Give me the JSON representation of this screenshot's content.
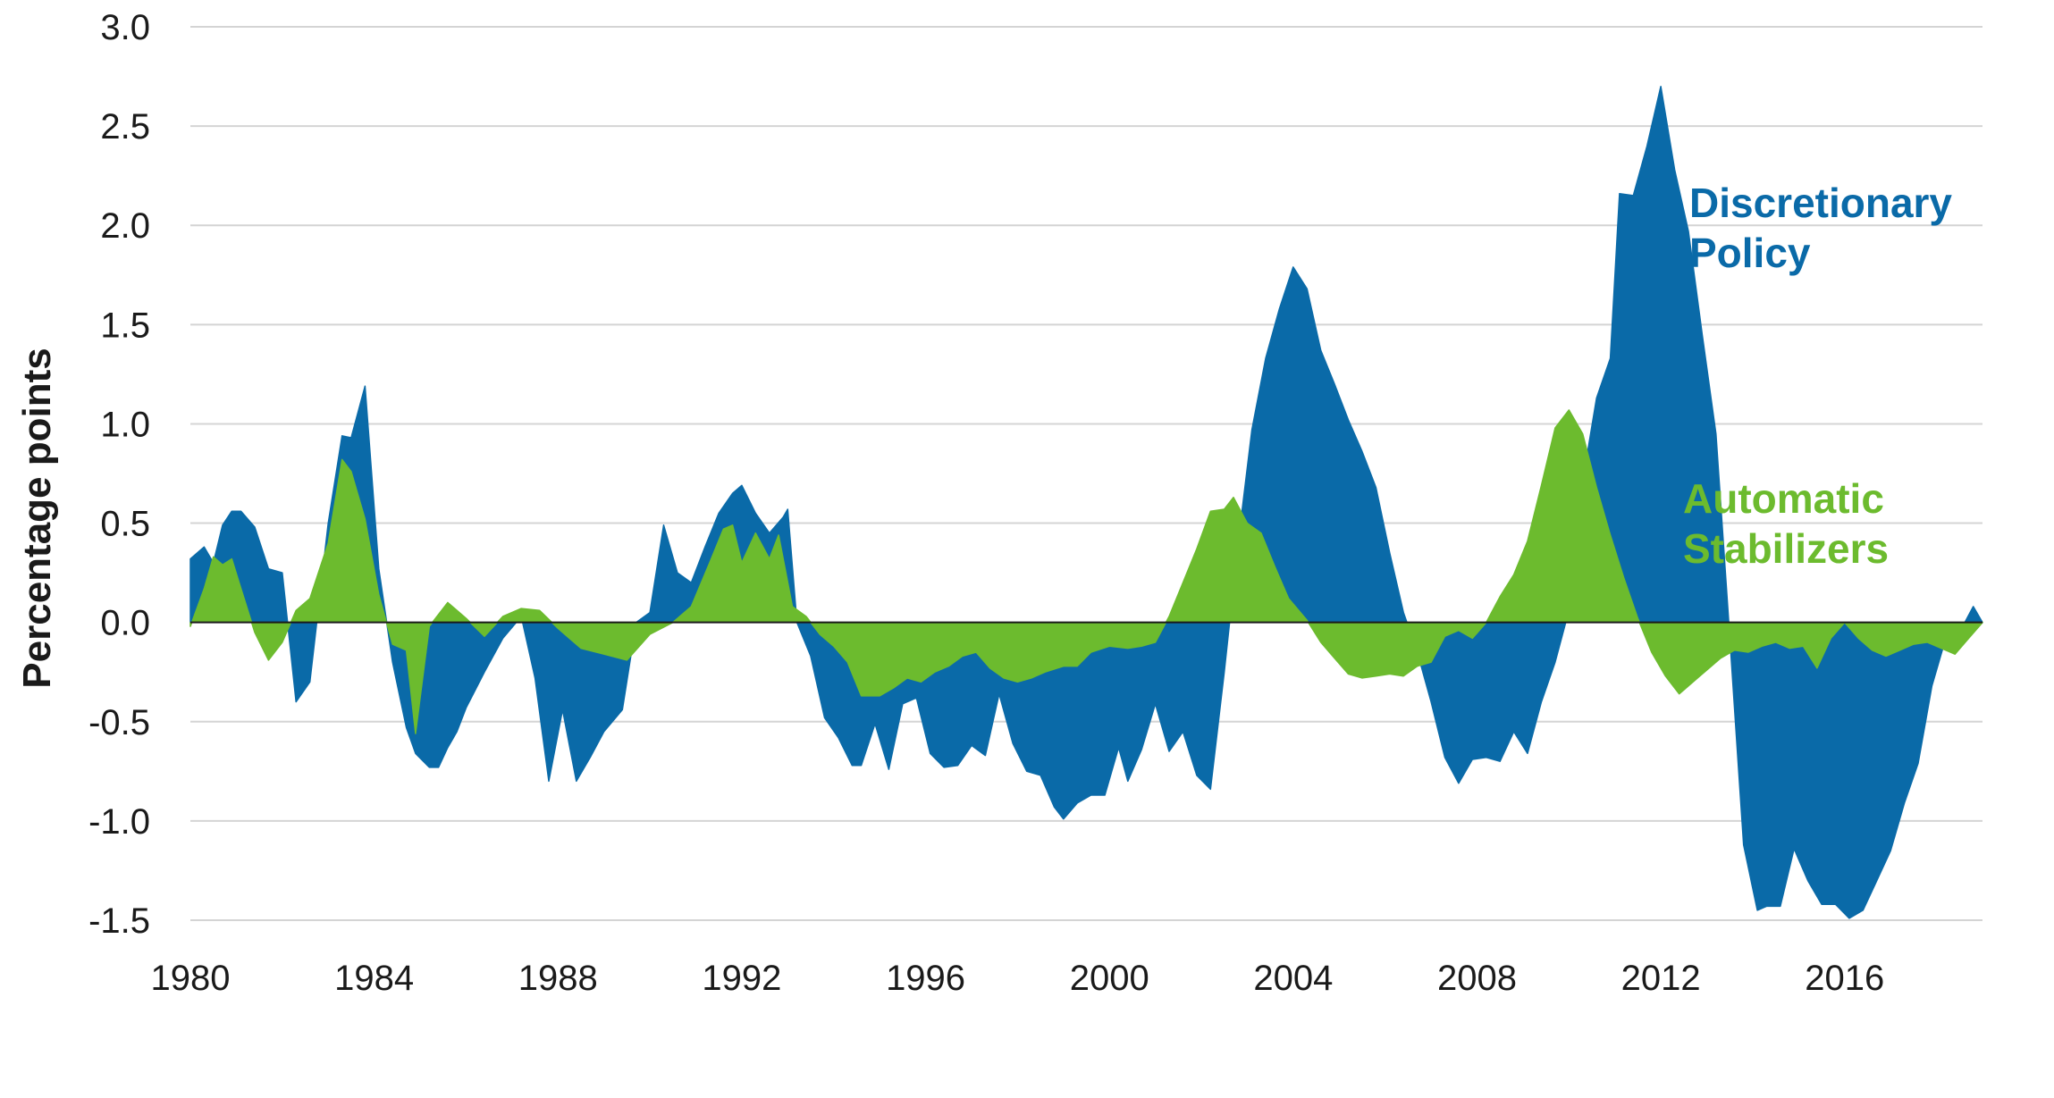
{
  "chart_data": {
    "type": "area",
    "title": "",
    "xlabel": "",
    "ylabel": "Percentage points",
    "xlim": [
      1980.0,
      2019.0
    ],
    "ylim": [
      -1.5,
      3.0
    ],
    "y_ticks": [
      "3.0",
      "2.5",
      "2.0",
      "1.5",
      "1.0",
      "0.5",
      "0.0",
      "-0.5",
      "-1.0",
      "-1.5"
    ],
    "x_ticks": [
      "1980",
      "1984",
      "1988",
      "1992",
      "1996",
      "2000",
      "2004",
      "2008",
      "2012",
      "2016"
    ],
    "grid": "horizontal",
    "colors": {
      "discretionary": "#0a6aa8",
      "automatic": "#6cbb2e",
      "zero_line": "#1a1a1a",
      "grid": "#d4d4d4"
    },
    "annotations": [
      {
        "series": "Discretionary Policy",
        "lines": [
          "Discretionary",
          "Policy"
        ],
        "color": "#0a6aa8"
      },
      {
        "series": "Automatic Stabilizers",
        "lines": [
          "Automatic",
          "Stabilizers"
        ],
        "color": "#6cbb2e"
      }
    ],
    "series": [
      {
        "name": "Automatic Stabilizers",
        "points": [
          [
            1980.0,
            -0.02
          ],
          [
            1980.3,
            0.17
          ],
          [
            1980.5,
            0.33
          ],
          [
            1980.7,
            0.29
          ],
          [
            1980.9,
            0.32
          ],
          [
            1981.1,
            0.17
          ],
          [
            1981.4,
            -0.05
          ],
          [
            1981.7,
            -0.19
          ],
          [
            1982.0,
            -0.1
          ],
          [
            1982.3,
            0.06
          ],
          [
            1982.6,
            0.12
          ],
          [
            1983.0,
            0.4
          ],
          [
            1983.3,
            0.82
          ],
          [
            1983.5,
            0.76
          ],
          [
            1983.8,
            0.52
          ],
          [
            1984.1,
            0.14
          ],
          [
            1984.4,
            -0.11
          ],
          [
            1984.7,
            -0.14
          ],
          [
            1984.9,
            -0.56
          ],
          [
            1985.2,
            -0.02
          ],
          [
            1985.6,
            0.1
          ],
          [
            1986.0,
            0.02
          ],
          [
            1986.4,
            -0.07
          ],
          [
            1986.8,
            0.03
          ],
          [
            1987.2,
            0.07
          ],
          [
            1987.6,
            0.06
          ],
          [
            1988.0,
            -0.03
          ],
          [
            1988.5,
            -0.13
          ],
          [
            1989.0,
            -0.16
          ],
          [
            1989.5,
            -0.19
          ],
          [
            1990.0,
            -0.06
          ],
          [
            1990.5,
            0.0
          ],
          [
            1990.9,
            0.08
          ],
          [
            1991.3,
            0.3
          ],
          [
            1991.6,
            0.47
          ],
          [
            1991.8,
            0.49
          ],
          [
            1992.0,
            0.3
          ],
          [
            1992.3,
            0.45
          ],
          [
            1992.6,
            0.32
          ],
          [
            1992.8,
            0.44
          ],
          [
            1993.1,
            0.08
          ],
          [
            1993.4,
            0.03
          ],
          [
            1993.7,
            -0.06
          ],
          [
            1994.0,
            -0.12
          ],
          [
            1994.3,
            -0.2
          ],
          [
            1994.6,
            -0.37
          ],
          [
            1995.0,
            -0.37
          ],
          [
            1995.3,
            -0.33
          ],
          [
            1995.6,
            -0.28
          ],
          [
            1995.9,
            -0.3
          ],
          [
            1996.2,
            -0.25
          ],
          [
            1996.5,
            -0.22
          ],
          [
            1996.8,
            -0.17
          ],
          [
            1997.1,
            -0.15
          ],
          [
            1997.4,
            -0.23
          ],
          [
            1997.7,
            -0.28
          ],
          [
            1998.0,
            -0.3
          ],
          [
            1998.3,
            -0.28
          ],
          [
            1998.6,
            -0.25
          ],
          [
            1999.0,
            -0.22
          ],
          [
            1999.3,
            -0.22
          ],
          [
            1999.6,
            -0.15
          ],
          [
            2000.0,
            -0.12
          ],
          [
            2000.4,
            -0.13
          ],
          [
            2000.7,
            -0.12
          ],
          [
            2001.0,
            -0.1
          ],
          [
            2001.3,
            0.03
          ],
          [
            2001.6,
            0.2
          ],
          [
            2001.9,
            0.37
          ],
          [
            2002.2,
            0.56
          ],
          [
            2002.5,
            0.57
          ],
          [
            2002.7,
            0.63
          ],
          [
            2003.0,
            0.5
          ],
          [
            2003.3,
            0.45
          ],
          [
            2003.6,
            0.28
          ],
          [
            2003.9,
            0.12
          ],
          [
            2004.3,
            0.01
          ],
          [
            2004.6,
            -0.1
          ],
          [
            2004.9,
            -0.18
          ],
          [
            2005.2,
            -0.26
          ],
          [
            2005.5,
            -0.28
          ],
          [
            2005.8,
            -0.27
          ],
          [
            2006.1,
            -0.26
          ],
          [
            2006.4,
            -0.27
          ],
          [
            2006.7,
            -0.22
          ],
          [
            2007.0,
            -0.2
          ],
          [
            2007.3,
            -0.07
          ],
          [
            2007.6,
            -0.04
          ],
          [
            2007.9,
            -0.08
          ],
          [
            2008.2,
            0.0
          ],
          [
            2008.5,
            0.13
          ],
          [
            2008.8,
            0.24
          ],
          [
            2009.1,
            0.41
          ],
          [
            2009.4,
            0.69
          ],
          [
            2009.7,
            0.98
          ],
          [
            2010.0,
            1.07
          ],
          [
            2010.3,
            0.95
          ],
          [
            2010.6,
            0.68
          ],
          [
            2010.9,
            0.44
          ],
          [
            2011.2,
            0.22
          ],
          [
            2011.5,
            0.02
          ],
          [
            2011.8,
            -0.15
          ],
          [
            2012.1,
            -0.27
          ],
          [
            2012.4,
            -0.36
          ],
          [
            2012.7,
            -0.3
          ],
          [
            2013.0,
            -0.24
          ],
          [
            2013.3,
            -0.18
          ],
          [
            2013.6,
            -0.14
          ],
          [
            2013.9,
            -0.15
          ],
          [
            2014.2,
            -0.12
          ],
          [
            2014.5,
            -0.1
          ],
          [
            2014.8,
            -0.13
          ],
          [
            2015.1,
            -0.12
          ],
          [
            2015.4,
            -0.23
          ],
          [
            2015.7,
            -0.08
          ],
          [
            2016.0,
            0.0
          ],
          [
            2016.3,
            -0.08
          ],
          [
            2016.6,
            -0.14
          ],
          [
            2016.9,
            -0.17
          ],
          [
            2017.2,
            -0.14
          ],
          [
            2017.5,
            -0.11
          ],
          [
            2017.8,
            -0.1
          ],
          [
            2018.1,
            -0.13
          ],
          [
            2018.4,
            -0.16
          ],
          [
            2018.7,
            -0.08
          ],
          [
            2019.0,
            0.0
          ]
        ]
      },
      {
        "name": "Discretionary Policy",
        "points": [
          [
            1980.0,
            0.32
          ],
          [
            1980.3,
            0.38
          ],
          [
            1980.5,
            0.3
          ],
          [
            1980.7,
            0.49
          ],
          [
            1980.9,
            0.56
          ],
          [
            1981.1,
            0.56
          ],
          [
            1981.4,
            0.48
          ],
          [
            1981.7,
            0.27
          ],
          [
            1982.0,
            0.25
          ],
          [
            1982.3,
            -0.4
          ],
          [
            1982.6,
            -0.3
          ],
          [
            1983.0,
            0.5
          ],
          [
            1983.3,
            0.94
          ],
          [
            1983.5,
            0.93
          ],
          [
            1983.8,
            1.19
          ],
          [
            1984.1,
            0.27
          ],
          [
            1984.4,
            -0.2
          ],
          [
            1984.7,
            -0.53
          ],
          [
            1984.9,
            -0.66
          ],
          [
            1985.2,
            -0.73
          ],
          [
            1985.4,
            -0.73
          ],
          [
            1985.6,
            -0.63
          ],
          [
            1985.8,
            -0.55
          ],
          [
            1986.0,
            -0.43
          ],
          [
            1986.4,
            -0.25
          ],
          [
            1986.8,
            -0.08
          ],
          [
            1987.2,
            0.03
          ],
          [
            1987.5,
            -0.28
          ],
          [
            1987.8,
            -0.8
          ],
          [
            1988.1,
            -0.44
          ],
          [
            1988.4,
            -0.8
          ],
          [
            1988.7,
            -0.68
          ],
          [
            1989.0,
            -0.55
          ],
          [
            1989.4,
            -0.44
          ],
          [
            1989.7,
            0.0
          ],
          [
            1990.0,
            0.05
          ],
          [
            1990.3,
            0.49
          ],
          [
            1990.6,
            0.25
          ],
          [
            1990.9,
            0.2
          ],
          [
            1991.2,
            0.38
          ],
          [
            1991.5,
            0.55
          ],
          [
            1991.8,
            0.65
          ],
          [
            1992.0,
            0.69
          ],
          [
            1992.3,
            0.55
          ],
          [
            1992.6,
            0.45
          ],
          [
            1992.9,
            0.53
          ],
          [
            1993.0,
            0.57
          ],
          [
            1993.2,
            0.0
          ],
          [
            1993.5,
            -0.17
          ],
          [
            1993.8,
            -0.48
          ],
          [
            1994.1,
            -0.58
          ],
          [
            1994.4,
            -0.72
          ],
          [
            1994.6,
            -0.72
          ],
          [
            1994.9,
            -0.51
          ],
          [
            1995.2,
            -0.74
          ],
          [
            1995.5,
            -0.41
          ],
          [
            1995.8,
            -0.38
          ],
          [
            1996.1,
            -0.66
          ],
          [
            1996.4,
            -0.73
          ],
          [
            1996.7,
            -0.72
          ],
          [
            1997.0,
            -0.62
          ],
          [
            1997.3,
            -0.67
          ],
          [
            1997.6,
            -0.36
          ],
          [
            1997.9,
            -0.61
          ],
          [
            1998.2,
            -0.75
          ],
          [
            1998.5,
            -0.77
          ],
          [
            1998.8,
            -0.93
          ],
          [
            1999.0,
            -0.99
          ],
          [
            1999.3,
            -0.91
          ],
          [
            1999.6,
            -0.87
          ],
          [
            1999.9,
            -0.87
          ],
          [
            2000.2,
            -0.63
          ],
          [
            2000.4,
            -0.8
          ],
          [
            2000.7,
            -0.64
          ],
          [
            2001.0,
            -0.41
          ],
          [
            2001.3,
            -0.65
          ],
          [
            2001.6,
            -0.55
          ],
          [
            2001.9,
            -0.77
          ],
          [
            2002.2,
            -0.84
          ],
          [
            2002.5,
            -0.25
          ],
          [
            2002.8,
            0.4
          ],
          [
            2003.1,
            0.97
          ],
          [
            2003.4,
            1.33
          ],
          [
            2003.7,
            1.58
          ],
          [
            2004.0,
            1.79
          ],
          [
            2004.3,
            1.68
          ],
          [
            2004.6,
            1.37
          ],
          [
            2004.9,
            1.2
          ],
          [
            2005.2,
            1.02
          ],
          [
            2005.5,
            0.86
          ],
          [
            2005.8,
            0.68
          ],
          [
            2006.1,
            0.35
          ],
          [
            2006.4,
            0.05
          ],
          [
            2006.7,
            -0.15
          ],
          [
            2007.0,
            -0.4
          ],
          [
            2007.3,
            -0.68
          ],
          [
            2007.6,
            -0.81
          ],
          [
            2007.9,
            -0.69
          ],
          [
            2008.2,
            -0.68
          ],
          [
            2008.5,
            -0.7
          ],
          [
            2008.8,
            -0.55
          ],
          [
            2009.1,
            -0.66
          ],
          [
            2009.4,
            -0.4
          ],
          [
            2009.7,
            -0.2
          ],
          [
            2010.0,
            0.06
          ],
          [
            2010.3,
            0.71
          ],
          [
            2010.6,
            1.13
          ],
          [
            2010.9,
            1.33
          ],
          [
            2011.1,
            2.16
          ],
          [
            2011.4,
            2.15
          ],
          [
            2011.7,
            2.4
          ],
          [
            2012.0,
            2.7
          ],
          [
            2012.3,
            2.28
          ],
          [
            2012.6,
            1.97
          ],
          [
            2012.9,
            1.45
          ],
          [
            2013.2,
            0.95
          ],
          [
            2013.5,
            -0.07
          ],
          [
            2013.8,
            -1.12
          ],
          [
            2014.1,
            -1.45
          ],
          [
            2014.3,
            -1.43
          ],
          [
            2014.6,
            -1.43
          ],
          [
            2014.9,
            -1.14
          ],
          [
            2015.2,
            -1.3
          ],
          [
            2015.5,
            -1.42
          ],
          [
            2015.8,
            -1.42
          ],
          [
            2016.1,
            -1.49
          ],
          [
            2016.4,
            -1.45
          ],
          [
            2016.7,
            -1.3
          ],
          [
            2017.0,
            -1.15
          ],
          [
            2017.3,
            -0.91
          ],
          [
            2017.6,
            -0.71
          ],
          [
            2017.9,
            -0.32
          ],
          [
            2018.2,
            -0.08
          ],
          [
            2018.5,
            -0.05
          ],
          [
            2018.8,
            0.08
          ],
          [
            2019.0,
            0.0
          ]
        ]
      }
    ]
  }
}
